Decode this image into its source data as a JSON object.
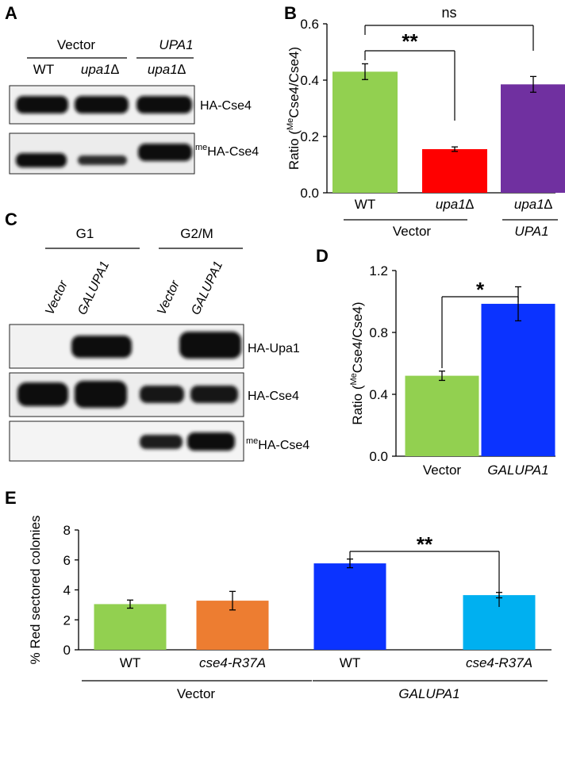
{
  "panels": {
    "a": {
      "letter": "A",
      "group_vector": "Vector",
      "group_upa1": "UPA1",
      "lanes": [
        "WT",
        "upa1∆",
        "upa1∆"
      ],
      "bands": [
        "HA-Cse4",
        "HA-Cse4"
      ],
      "band_me_prefix": "me"
    },
    "b": {
      "letter": "B"
    },
    "c": {
      "letter": "C",
      "group_g1": "G1",
      "group_g2m": "G2/M",
      "lanes": [
        "Vector",
        "GALUPA1",
        "Vector",
        "GALUPA1"
      ],
      "bands": [
        "HA-Upa1",
        "HA-Cse4",
        "HA-Cse4"
      ],
      "band_me_prefix": "me"
    },
    "d": {
      "letter": "D"
    },
    "e": {
      "letter": "E"
    }
  },
  "chart_data": [
    {
      "id": "B",
      "type": "bar",
      "categories": [
        "WT",
        "upa1∆",
        "upa1∆"
      ],
      "category_italic": [
        false,
        true,
        true
      ],
      "group_labels": [
        "Vector",
        "UPA1"
      ],
      "values": [
        0.43,
        0.155,
        0.385
      ],
      "errors": [
        0.028,
        0.008,
        0.028
      ],
      "colors": [
        "#92d050",
        "#ff0000",
        "#7030a0"
      ],
      "ylabel_pre": "Ratio (",
      "ylabel_sup": "Me",
      "ylabel_post": "Cse4/Cse4)",
      "ylim": [
        0,
        0.6
      ],
      "yticks": [
        "0.0",
        "0.2",
        "0.4",
        "0.6"
      ],
      "significance": [
        "**",
        "ns"
      ]
    },
    {
      "id": "D",
      "type": "bar",
      "categories": [
        "Vector",
        "GALUPA1"
      ],
      "category_italic": [
        false,
        true
      ],
      "values": [
        0.52,
        0.985
      ],
      "errors": [
        0.03,
        0.11
      ],
      "colors": [
        "#92d050",
        "#0b33ff"
      ],
      "ylabel_pre": "Ratio (",
      "ylabel_sup": "Me",
      "ylabel_post": "Cse4/Cse4)",
      "ylim": [
        0,
        1.2
      ],
      "yticks": [
        "0.0",
        "0.4",
        "0.8",
        "1.2"
      ],
      "significance": [
        "*"
      ]
    },
    {
      "id": "E",
      "type": "bar",
      "categories": [
        "WT",
        "cse4-R37A",
        "WT",
        "cse4-R37A"
      ],
      "category_italic": [
        false,
        true,
        false,
        true
      ],
      "group_labels": [
        "Vector",
        "GALUPA1"
      ],
      "values": [
        3.05,
        3.28,
        5.77,
        3.65
      ],
      "errors": [
        0.27,
        0.62,
        0.29,
        0.18
      ],
      "colors": [
        "#92d050",
        "#ed7d31",
        "#0b33ff",
        "#00b0f0"
      ],
      "ylabel": "% Red sectored colonies",
      "ylim": [
        0,
        8
      ],
      "yticks": [
        "0",
        "2",
        "4",
        "6",
        "8"
      ],
      "significance": [
        "**"
      ]
    }
  ]
}
